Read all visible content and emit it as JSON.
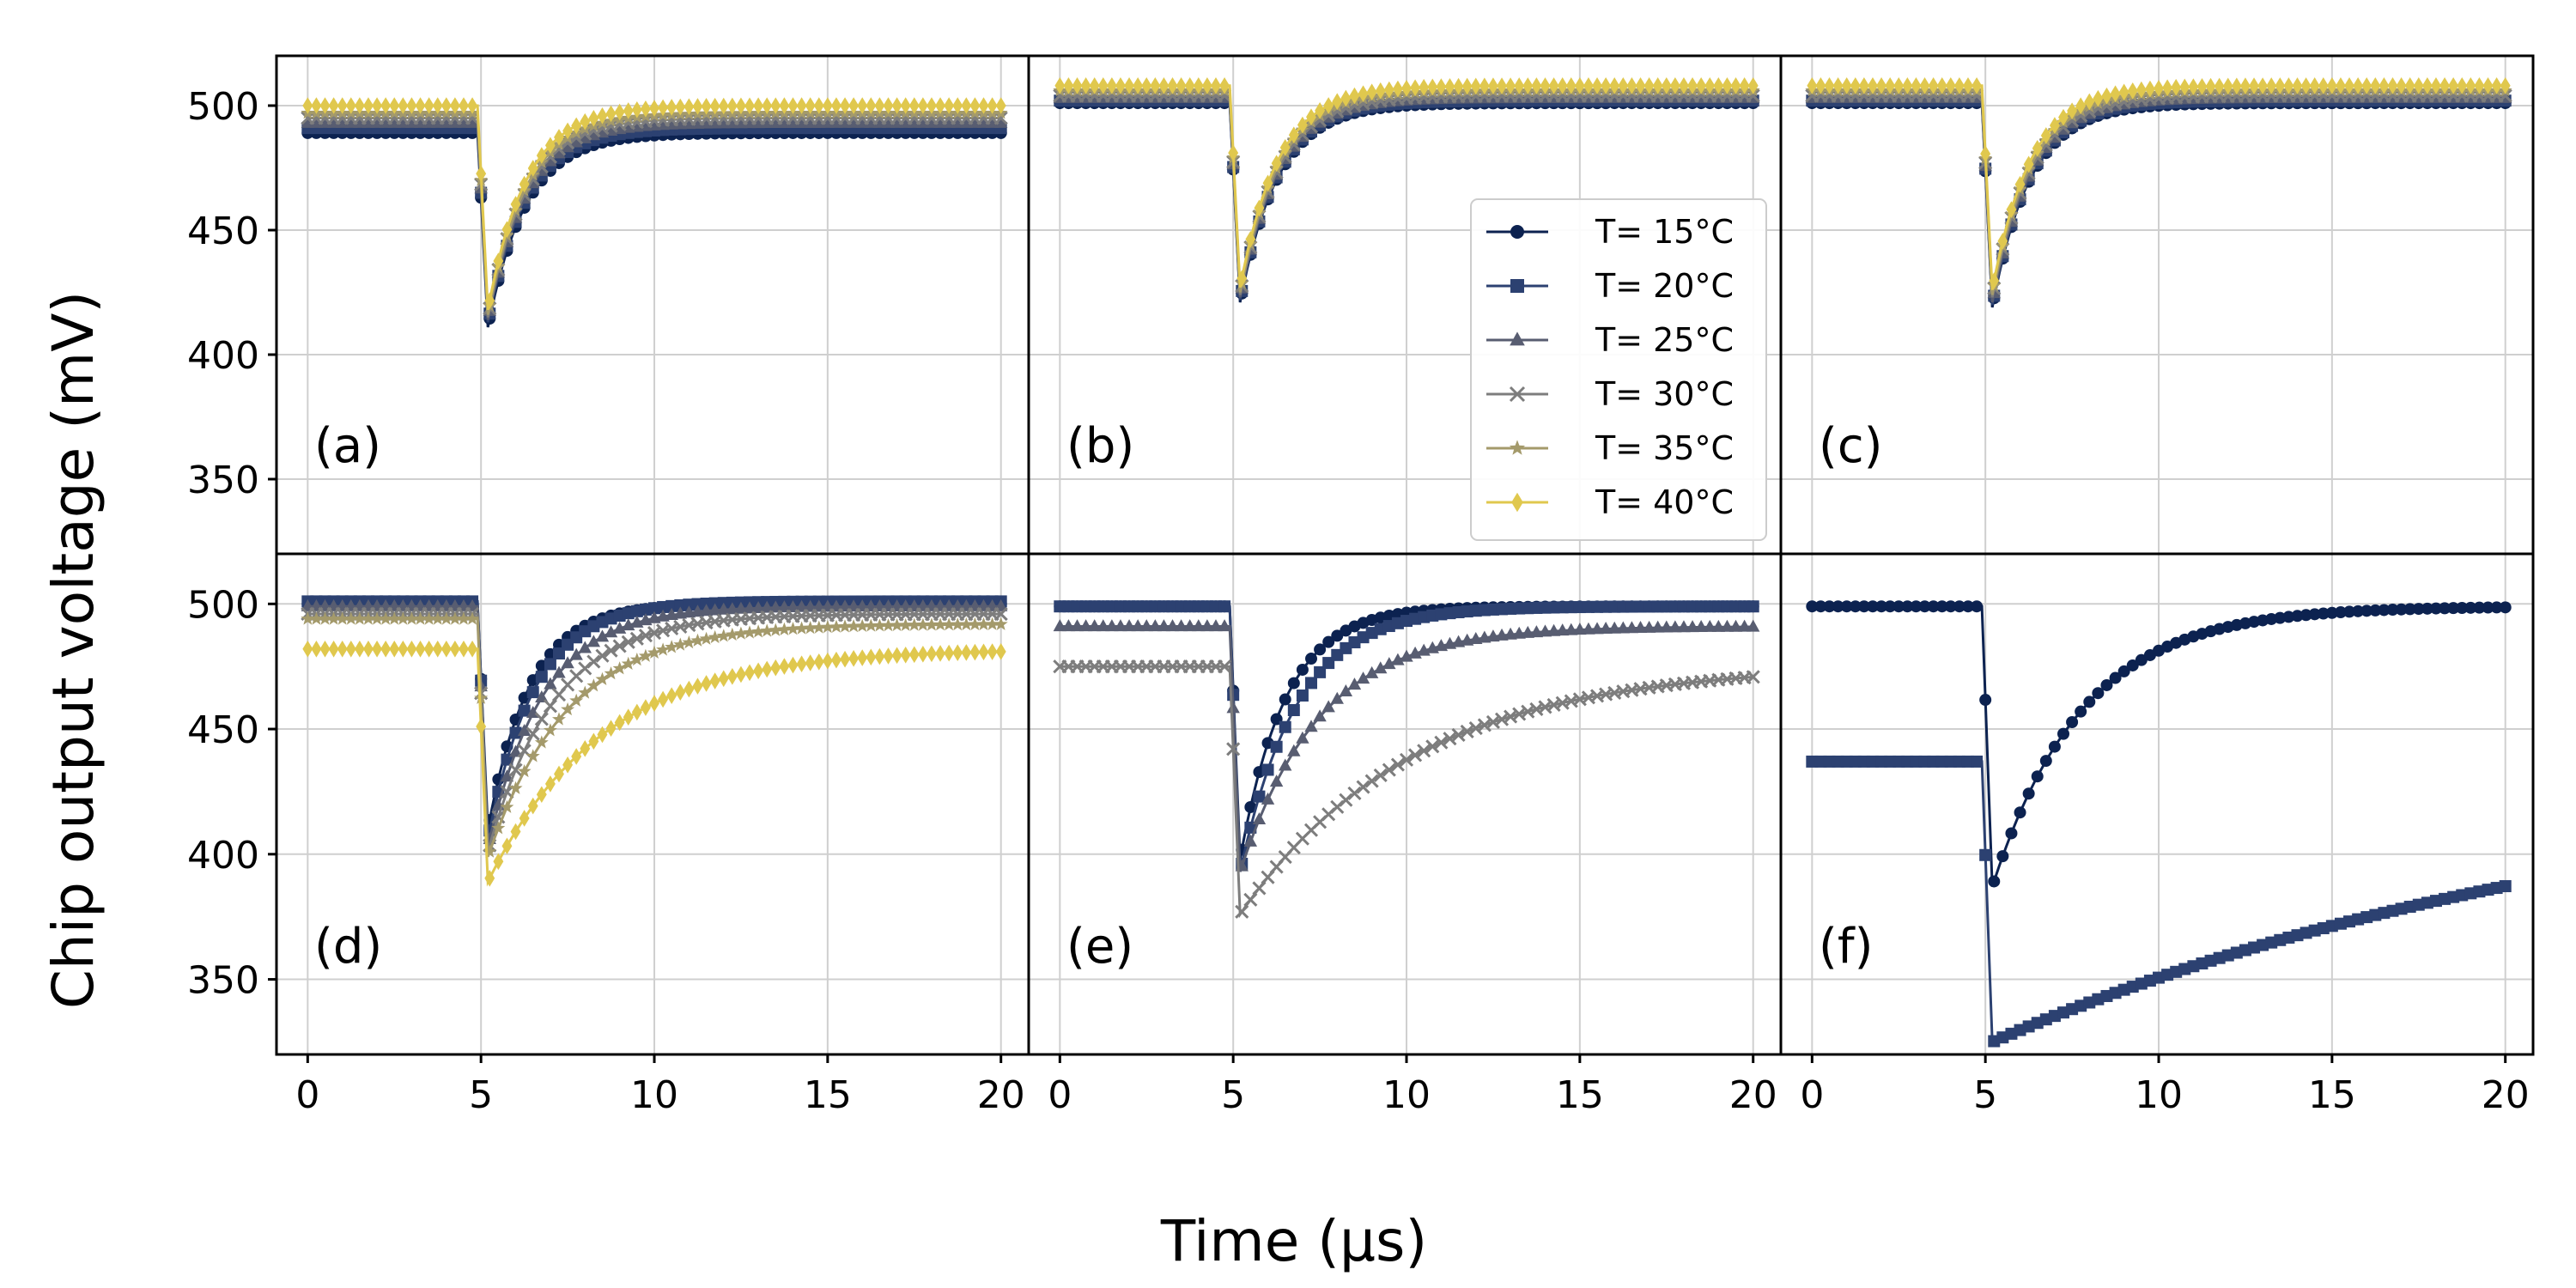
{
  "chart_data": {
    "type": "line",
    "title": "",
    "xlabel": "Time (μs)",
    "ylabel": "Chip output voltage (mV)",
    "xlim": [
      -0.9,
      20.8
    ],
    "ylim": [
      320,
      520
    ],
    "xticks": [
      0,
      5,
      10,
      15,
      20
    ],
    "yticks": [
      350,
      400,
      450,
      500
    ],
    "x_tick_labels": [
      "0",
      "5",
      "10",
      "15",
      "20"
    ],
    "y_tick_labels": [
      "350",
      "400",
      "450",
      "500"
    ],
    "grid": true,
    "legend_position": "right of panel (b)",
    "legend": [
      {
        "name": "T= 15°C",
        "color": "#0c2250",
        "marker": "circle"
      },
      {
        "name": "T= 20°C",
        "color": "#2c4171",
        "marker": "square"
      },
      {
        "name": "T= 25°C",
        "color": "#585d71",
        "marker": "triangle"
      },
      {
        "name": "T= 30°C",
        "color": "#7d7d7d",
        "marker": "x"
      },
      {
        "name": "T= 35°C",
        "color": "#a49a6b",
        "marker": "star"
      },
      {
        "name": "T= 40°C",
        "color": "#e0c84e",
        "marker": "diamond"
      }
    ],
    "signal_model": "v(t) = baseline for t < 4.9 μs; v = minimum at t = 5.2 μs; then exponential recovery v(t) = final - (final - minimum) * exp(-(t - 5.2) / tau)",
    "panels": [
      {
        "label": "(a)",
        "series": [
          {
            "name": "T= 15°C",
            "baseline": 489,
            "minimum": 411,
            "final": 489,
            "tau": 1.1
          },
          {
            "name": "T= 20°C",
            "baseline": 491,
            "minimum": 413,
            "final": 491,
            "tau": 1.1
          },
          {
            "name": "T= 25°C",
            "baseline": 493,
            "minimum": 414,
            "final": 493,
            "tau": 1.1
          },
          {
            "name": "T= 30°C",
            "baseline": 495,
            "minimum": 415,
            "final": 495,
            "tau": 1.1
          },
          {
            "name": "T= 35°C",
            "baseline": 497,
            "minimum": 416,
            "final": 497,
            "tau": 1.1
          },
          {
            "name": "T= 40°C",
            "baseline": 500,
            "minimum": 418,
            "final": 500,
            "tau": 1.1
          }
        ]
      },
      {
        "label": "(b)",
        "series": [
          {
            "name": "T= 15°C",
            "baseline": 501,
            "minimum": 421,
            "final": 501,
            "tau": 1.1
          },
          {
            "name": "T= 20°C",
            "baseline": 502,
            "minimum": 422,
            "final": 502,
            "tau": 1.1
          },
          {
            "name": "T= 25°C",
            "baseline": 503,
            "minimum": 423,
            "final": 503,
            "tau": 1.1
          },
          {
            "name": "T= 30°C",
            "baseline": 504,
            "minimum": 424,
            "final": 504,
            "tau": 1.1
          },
          {
            "name": "T= 35°C",
            "baseline": 506,
            "minimum": 425,
            "final": 506,
            "tau": 1.1
          },
          {
            "name": "T= 40°C",
            "baseline": 508,
            "minimum": 427,
            "final": 508,
            "tau": 1.1
          }
        ]
      },
      {
        "label": "(c)",
        "series": [
          {
            "name": "T= 15°C",
            "baseline": 501,
            "minimum": 419,
            "final": 501,
            "tau": 1.1
          },
          {
            "name": "T= 20°C",
            "baseline": 502,
            "minimum": 420,
            "final": 502,
            "tau": 1.1
          },
          {
            "name": "T= 25°C",
            "baseline": 503,
            "minimum": 421,
            "final": 503,
            "tau": 1.1
          },
          {
            "name": "T= 30°C",
            "baseline": 504,
            "minimum": 423,
            "final": 504,
            "tau": 1.1
          },
          {
            "name": "T= 35°C",
            "baseline": 506,
            "minimum": 424,
            "final": 506,
            "tau": 1.1
          },
          {
            "name": "T= 40°C",
            "baseline": 508,
            "minimum": 426,
            "final": 508,
            "tau": 1.1
          }
        ]
      },
      {
        "label": "(d)",
        "series": [
          {
            "name": "T= 15°C",
            "baseline": 500,
            "minimum": 410,
            "final": 500,
            "tau": 1.2
          },
          {
            "name": "T= 20°C",
            "baseline": 501,
            "minimum": 406,
            "final": 501,
            "tau": 1.35
          },
          {
            "name": "T= 25°C",
            "baseline": 499,
            "minimum": 403,
            "final": 499,
            "tau": 1.6
          },
          {
            "name": "T= 30°C",
            "baseline": 496,
            "minimum": 401,
            "final": 496,
            "tau": 1.9
          },
          {
            "name": "T= 35°C",
            "baseline": 494,
            "minimum": 399,
            "final": 492,
            "tau": 2.3
          },
          {
            "name": "T= 40°C",
            "baseline": 482,
            "minimum": 389,
            "final": 482,
            "tau": 3.3
          }
        ]
      },
      {
        "label": "(e)",
        "series": [
          {
            "name": "T= 15°C",
            "baseline": 499,
            "minimum": 398,
            "final": 499,
            "tau": 1.3
          },
          {
            "name": "T= 20°C",
            "baseline": 499,
            "minimum": 393,
            "final": 499,
            "tau": 1.65
          },
          {
            "name": "T= 25°C",
            "baseline": 491,
            "minimum": 393,
            "final": 491,
            "tau": 2.3
          },
          {
            "name": "T= 30°C",
            "baseline": 475,
            "minimum": 376,
            "final": 476,
            "tau": 5.0
          }
        ]
      },
      {
        "label": "(f)",
        "series": [
          {
            "name": "T= 15°C",
            "baseline": 499,
            "minimum": 387,
            "final": 499,
            "tau": 2.6
          },
          {
            "name": "T= 20°C",
            "baseline": 437,
            "minimum": 325,
            "final": 440,
            "tau": 19.0
          }
        ]
      }
    ]
  }
}
